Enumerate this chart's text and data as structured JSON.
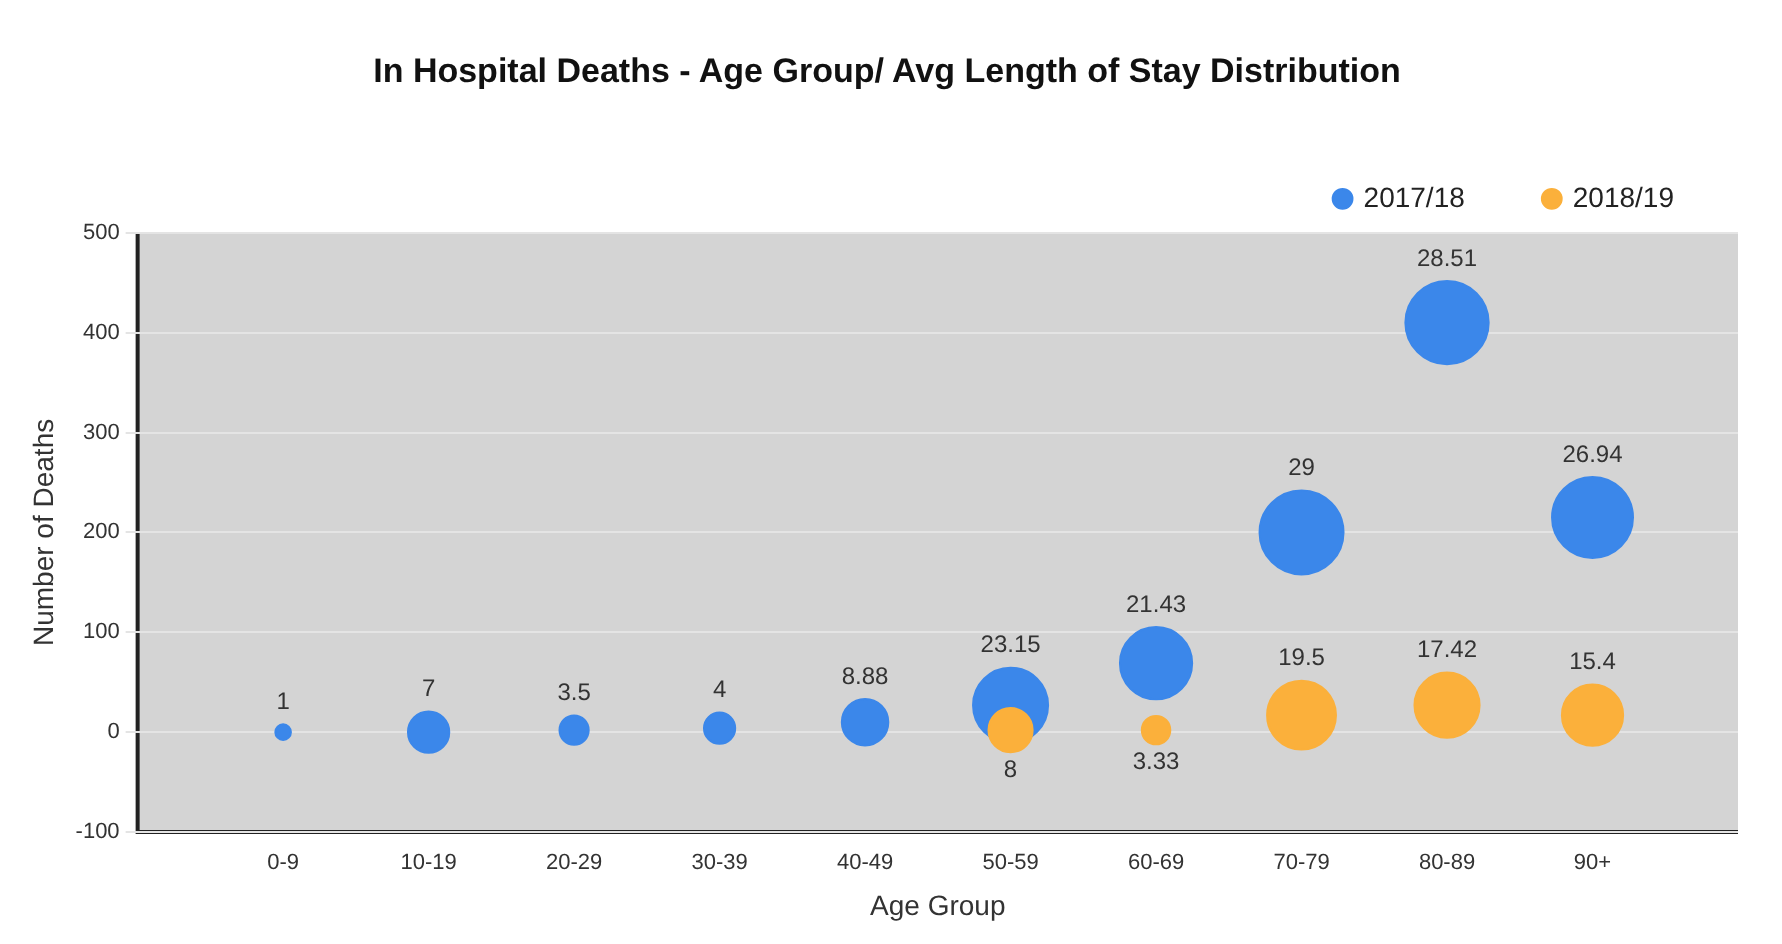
{
  "chart_data": {
    "type": "bubble",
    "title": "In Hospital Deaths - Age Group/ Avg Length of Stay Distribution",
    "xlabel": "Age Group",
    "ylabel": "Number of Deaths",
    "categories": [
      "0-9",
      "10-19",
      "20-29",
      "30-39",
      "40-49",
      "50-59",
      "60-69",
      "70-79",
      "80-89",
      "90+"
    ],
    "series": [
      {
        "name": "2017/18",
        "color": "#3b87ea",
        "values": [
          0,
          0,
          2,
          4,
          10,
          27,
          69,
          200,
          410,
          215
        ],
        "sizes": [
          1,
          7,
          3.5,
          4,
          8.88,
          23.15,
          21.43,
          29,
          28.51,
          26.94
        ],
        "value_labels": [
          "1",
          "7",
          "3.5",
          "4",
          "8.88",
          "23.15",
          "21.43",
          "29",
          "28.51",
          "26.94"
        ]
      },
      {
        "name": "2018/19",
        "color": "#fbb03b",
        "values": [
          null,
          null,
          null,
          null,
          null,
          2,
          2,
          17,
          27,
          17
        ],
        "sizes": [
          null,
          null,
          null,
          null,
          null,
          8,
          3.33,
          19.5,
          17.42,
          15.4
        ],
        "value_labels": [
          null,
          null,
          null,
          null,
          null,
          "8",
          "3.33",
          "19.5",
          "17.42",
          "15.4"
        ]
      }
    ],
    "ylim": [
      -100,
      500
    ],
    "yticks": [
      -100,
      0,
      100,
      200,
      300,
      400,
      500
    ],
    "grid": "y",
    "legend": "top right"
  }
}
